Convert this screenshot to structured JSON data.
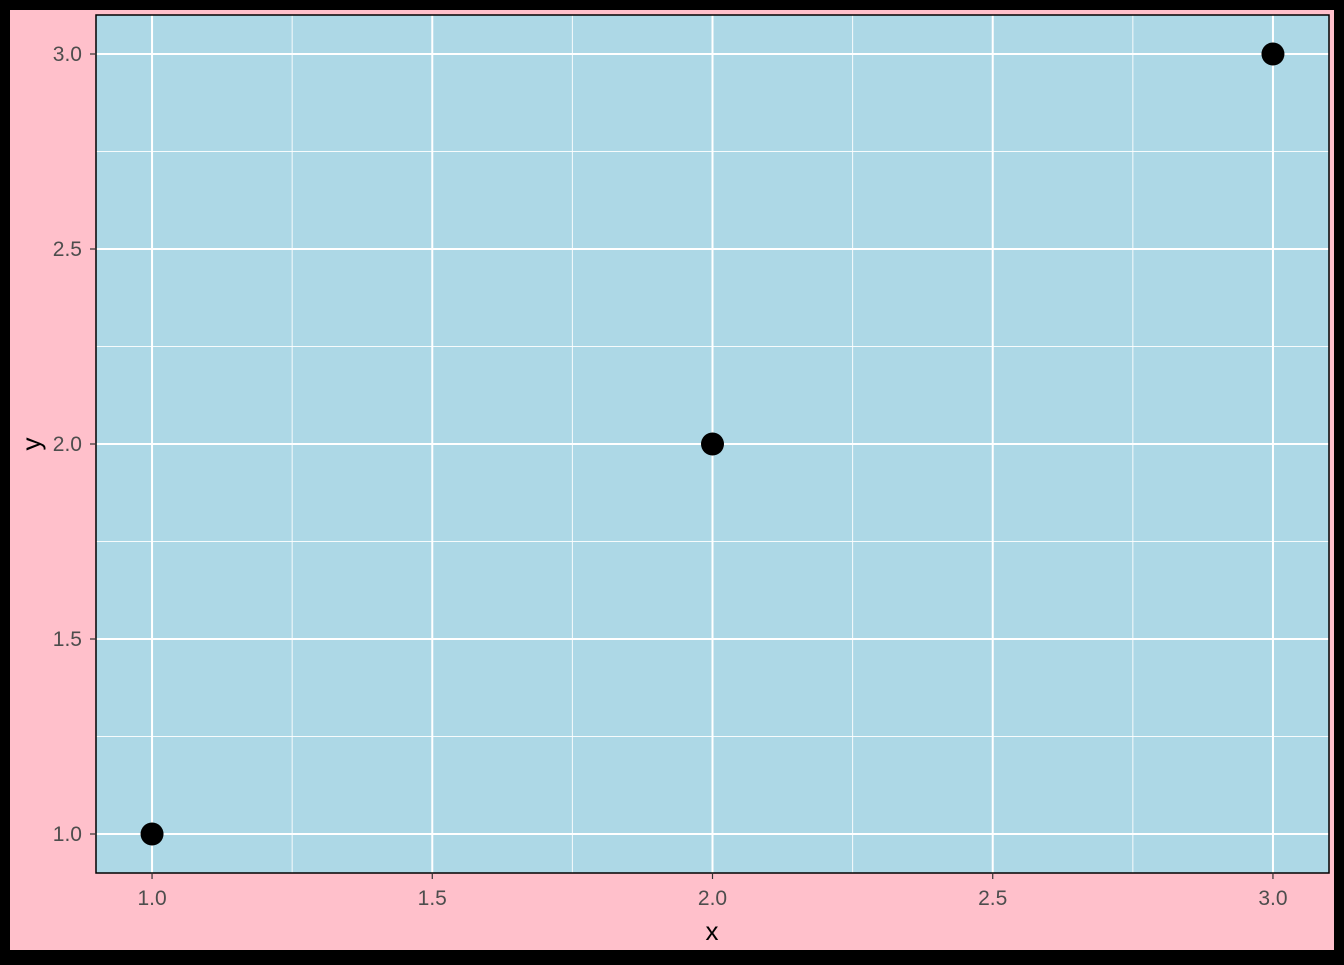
{
  "chart_data": {
    "type": "scatter",
    "title": "",
    "xlabel": "x",
    "ylabel": "y",
    "xlim": [
      0.9,
      3.1
    ],
    "ylim": [
      0.9,
      3.1
    ],
    "x_ticks": [
      1.0,
      1.5,
      2.0,
      2.5,
      3.0
    ],
    "x_tick_labels": [
      "1.0",
      "1.5",
      "2.0",
      "2.5",
      "3.0"
    ],
    "y_ticks": [
      1.0,
      1.5,
      2.0,
      2.5,
      3.0
    ],
    "y_tick_labels": [
      "1.0",
      "1.5",
      "2.0",
      "2.5",
      "3.0"
    ],
    "grid": true,
    "points": [
      {
        "x": 1,
        "y": 1
      },
      {
        "x": 2,
        "y": 2
      },
      {
        "x": 3,
        "y": 3
      }
    ],
    "colors": {
      "outer_border": "#000000",
      "plot_background": "#ffc0cb",
      "panel_background": "#add8e6",
      "grid": "#ffffff",
      "point": "#000000"
    }
  }
}
